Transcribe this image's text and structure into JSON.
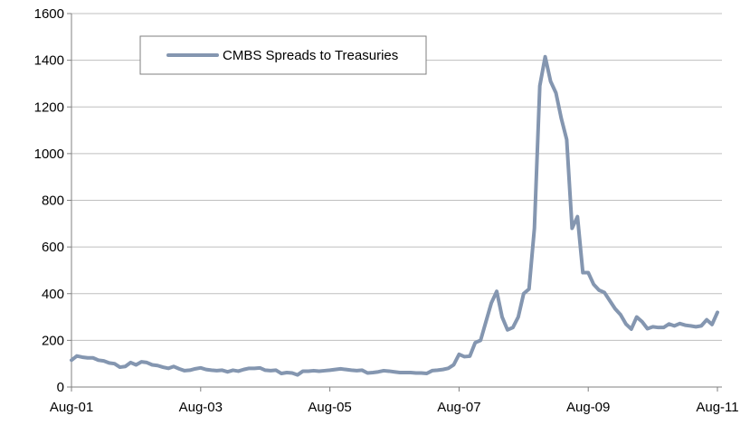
{
  "chart_data": {
    "type": "line",
    "title": "",
    "xlabel": "",
    "ylabel": "",
    "ylim": [
      0,
      1600
    ],
    "yticks": [
      0,
      200,
      400,
      600,
      800,
      1000,
      1200,
      1400,
      1600
    ],
    "xtick_labels": [
      "Aug-01",
      "Aug-03",
      "Aug-05",
      "Aug-07",
      "Aug-09",
      "Aug-11"
    ],
    "xtick_positions": [
      0,
      24,
      48,
      72,
      96,
      120
    ],
    "grid": "horizontal",
    "legend_position": "top-left inside",
    "series": [
      {
        "name": "CMBS Spreads to Treasuries",
        "color": "#8496B0",
        "x": [
          0,
          1,
          2,
          3,
          4,
          5,
          6,
          7,
          8,
          9,
          10,
          11,
          12,
          13,
          14,
          15,
          16,
          17,
          18,
          19,
          20,
          21,
          22,
          23,
          24,
          25,
          26,
          27,
          28,
          29,
          30,
          31,
          32,
          33,
          34,
          35,
          36,
          37,
          38,
          39,
          40,
          41,
          42,
          43,
          44,
          45,
          46,
          47,
          48,
          49,
          50,
          51,
          52,
          53,
          54,
          55,
          56,
          57,
          58,
          59,
          60,
          61,
          62,
          63,
          64,
          65,
          66,
          67,
          68,
          69,
          70,
          71,
          72,
          73,
          74,
          75,
          76,
          77,
          78,
          79,
          80,
          81,
          82,
          83,
          84,
          85,
          86,
          87,
          88,
          89,
          90,
          91,
          92,
          93,
          94,
          95,
          96,
          97,
          98,
          99,
          100,
          101,
          102,
          103,
          104,
          105,
          106,
          107,
          108,
          109,
          110,
          111,
          112,
          113,
          114,
          115,
          116,
          117,
          118,
          119,
          120
        ],
        "values": [
          115,
          133,
          128,
          125,
          125,
          115,
          112,
          103,
          100,
          85,
          88,
          105,
          95,
          108,
          105,
          95,
          92,
          85,
          80,
          88,
          78,
          70,
          72,
          78,
          82,
          75,
          72,
          70,
          72,
          65,
          72,
          68,
          75,
          80,
          80,
          82,
          72,
          70,
          72,
          58,
          62,
          60,
          52,
          68,
          68,
          70,
          68,
          70,
          72,
          75,
          78,
          75,
          72,
          70,
          72,
          60,
          62,
          65,
          70,
          68,
          65,
          62,
          62,
          62,
          60,
          60,
          58,
          70,
          72,
          75,
          80,
          95,
          140,
          130,
          132,
          190,
          200,
          280,
          360,
          410,
          300,
          245,
          255,
          300,
          400,
          420,
          680,
          1290,
          1415,
          1310,
          1260,
          1150,
          1060,
          680,
          730,
          490,
          490,
          440,
          415,
          405,
          370,
          335,
          310,
          270,
          248,
          300,
          280,
          250,
          258,
          255,
          255,
          270,
          262,
          272,
          265,
          262,
          258,
          262,
          288,
          268,
          320
        ]
      }
    ]
  }
}
